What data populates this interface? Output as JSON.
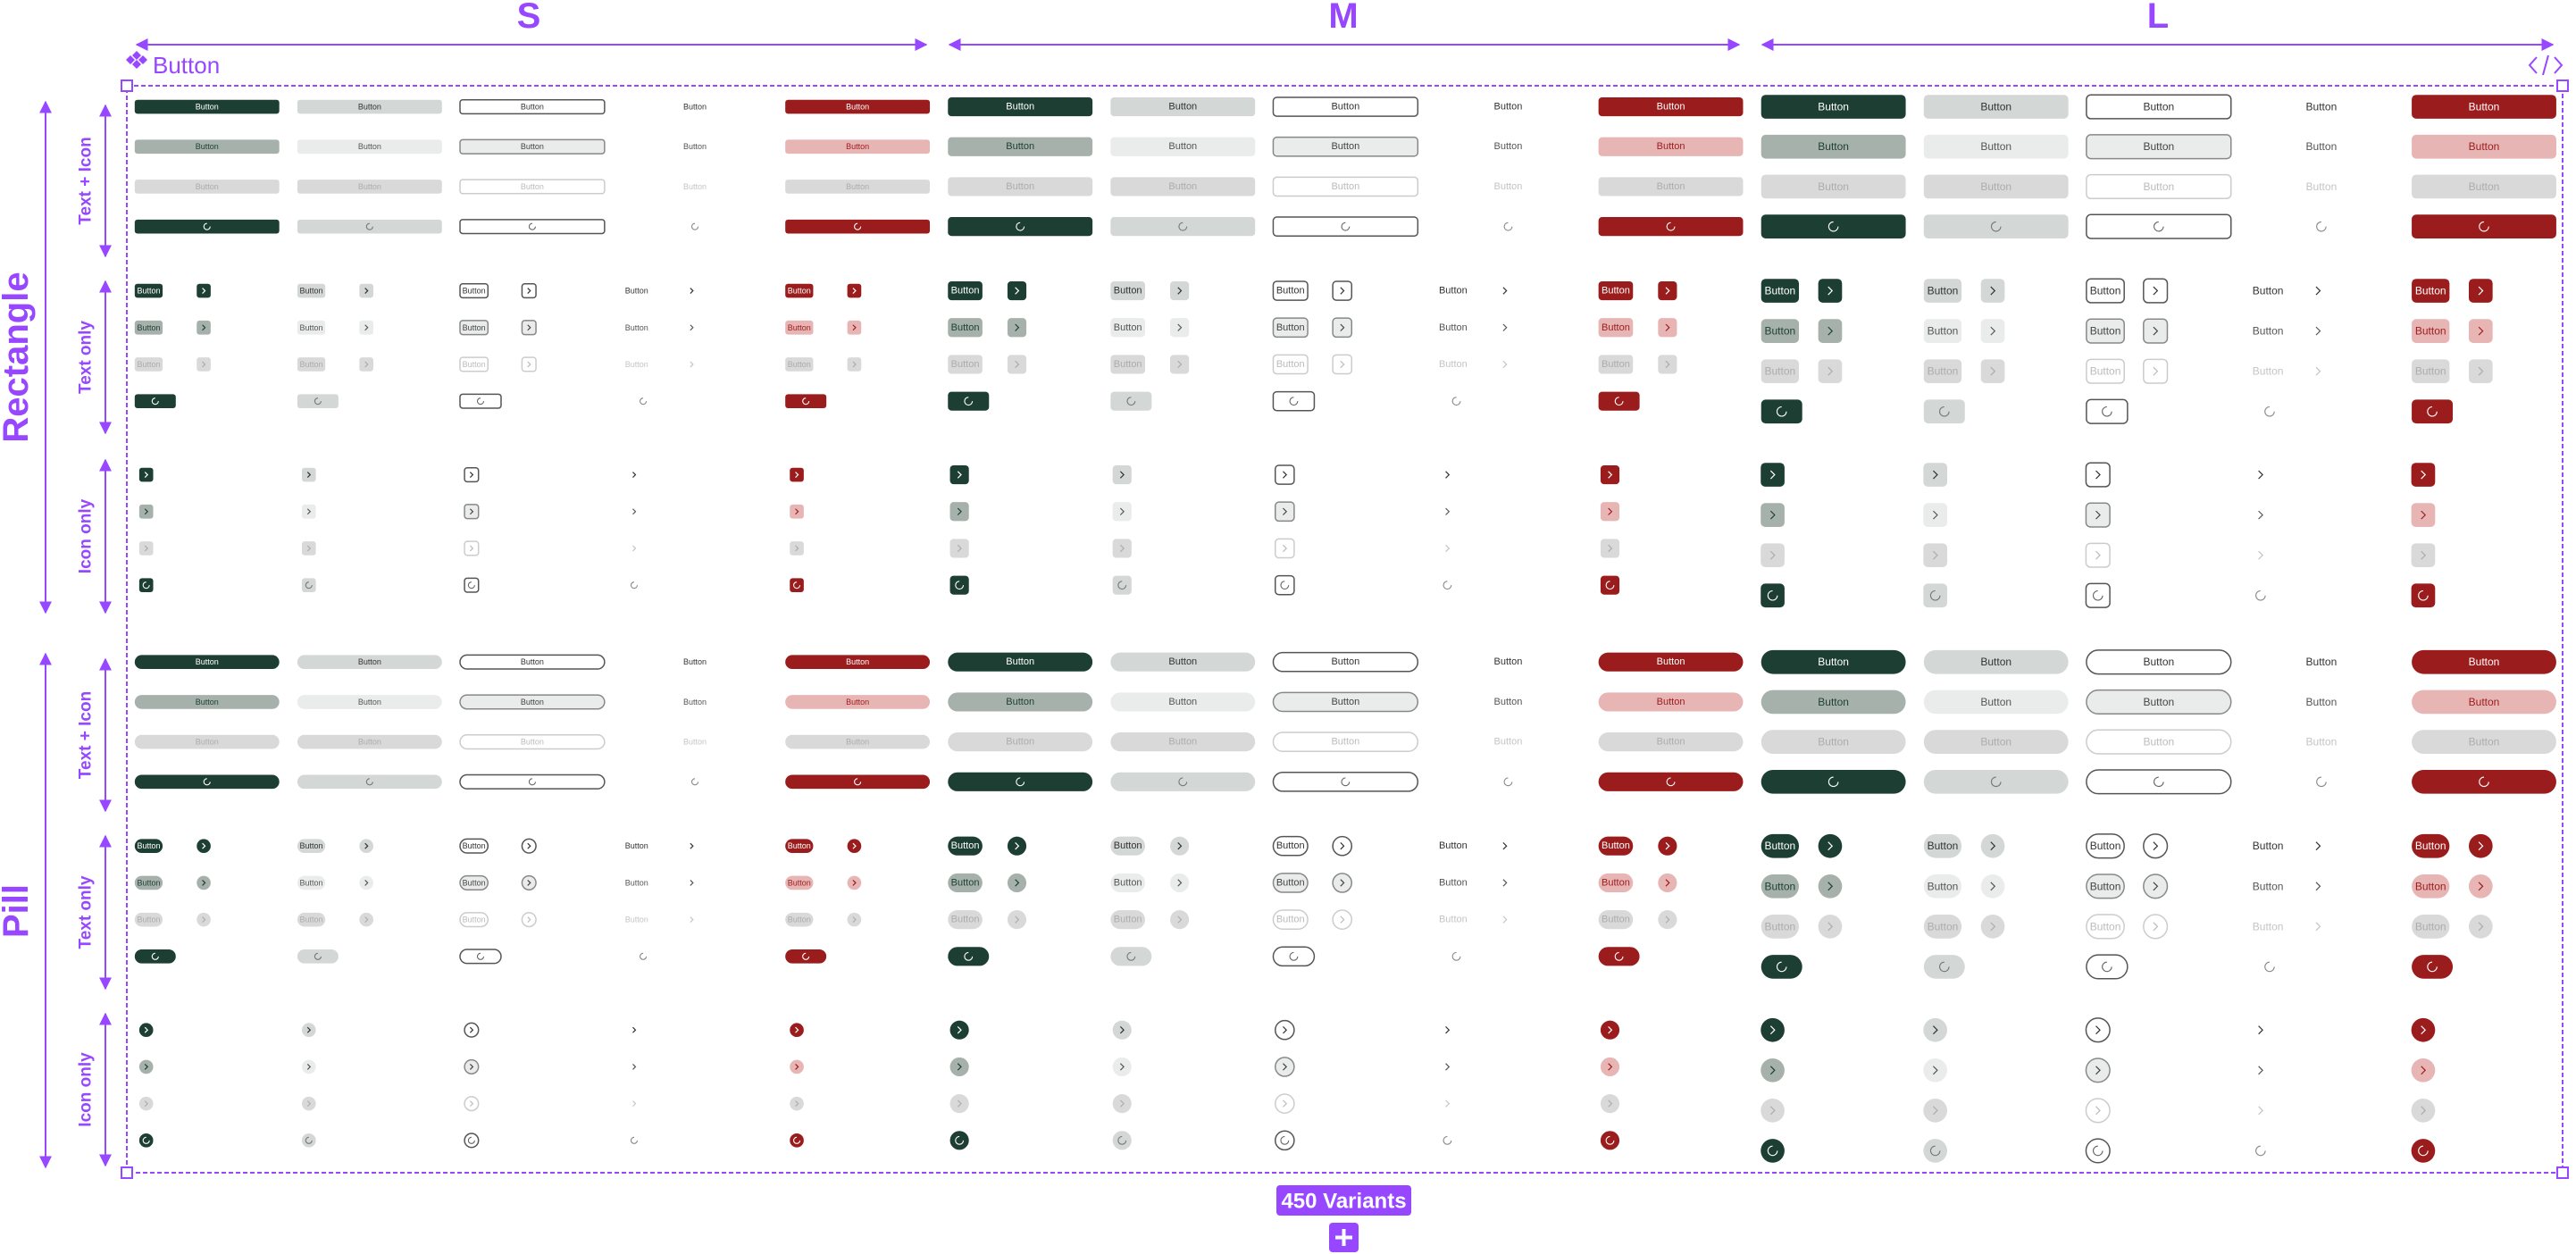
{
  "header": {
    "sizes": [
      "S",
      "M",
      "L"
    ],
    "component": "Button"
  },
  "groups": [
    {
      "shape": "Rectangle",
      "types": [
        "Text + Icon",
        "Text only",
        "Icon only"
      ]
    },
    {
      "shape": "Pill",
      "types": [
        "Text + Icon",
        "Text only",
        "Icon only"
      ]
    }
  ],
  "button_label": "Button",
  "footer": {
    "variants": "450 Variants"
  }
}
